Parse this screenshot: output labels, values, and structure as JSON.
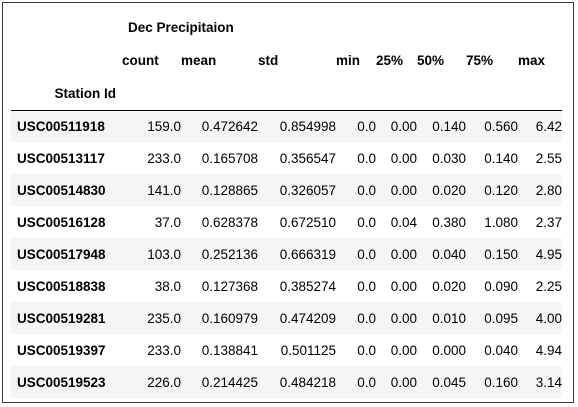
{
  "table": {
    "group_header": "Dec Precipitaion",
    "index_name": "Station Id",
    "columns": [
      "count",
      "mean",
      "std",
      "min",
      "25%",
      "50%",
      "75%",
      "max"
    ],
    "rows": [
      {
        "id": "USC00511918",
        "values": [
          "159.0",
          "0.472642",
          "0.854998",
          "0.0",
          "0.00",
          "0.140",
          "0.560",
          "6.42"
        ]
      },
      {
        "id": "USC00513117",
        "values": [
          "233.0",
          "0.165708",
          "0.356547",
          "0.0",
          "0.00",
          "0.030",
          "0.140",
          "2.55"
        ]
      },
      {
        "id": "USC00514830",
        "values": [
          "141.0",
          "0.128865",
          "0.326057",
          "0.0",
          "0.00",
          "0.020",
          "0.120",
          "2.80"
        ]
      },
      {
        "id": "USC00516128",
        "values": [
          "37.0",
          "0.628378",
          "0.672510",
          "0.0",
          "0.04",
          "0.380",
          "1.080",
          "2.37"
        ]
      },
      {
        "id": "USC00517948",
        "values": [
          "103.0",
          "0.252136",
          "0.666319",
          "0.0",
          "0.00",
          "0.040",
          "0.150",
          "4.95"
        ]
      },
      {
        "id": "USC00518838",
        "values": [
          "38.0",
          "0.127368",
          "0.385274",
          "0.0",
          "0.00",
          "0.020",
          "0.090",
          "2.25"
        ]
      },
      {
        "id": "USC00519281",
        "values": [
          "235.0",
          "0.160979",
          "0.474209",
          "0.0",
          "0.00",
          "0.010",
          "0.095",
          "4.00"
        ]
      },
      {
        "id": "USC00519397",
        "values": [
          "233.0",
          "0.138841",
          "0.501125",
          "0.0",
          "0.00",
          "0.000",
          "0.040",
          "4.94"
        ]
      },
      {
        "id": "USC00519523",
        "values": [
          "226.0",
          "0.214425",
          "0.484218",
          "0.0",
          "0.00",
          "0.045",
          "0.160",
          "3.14"
        ]
      }
    ]
  }
}
